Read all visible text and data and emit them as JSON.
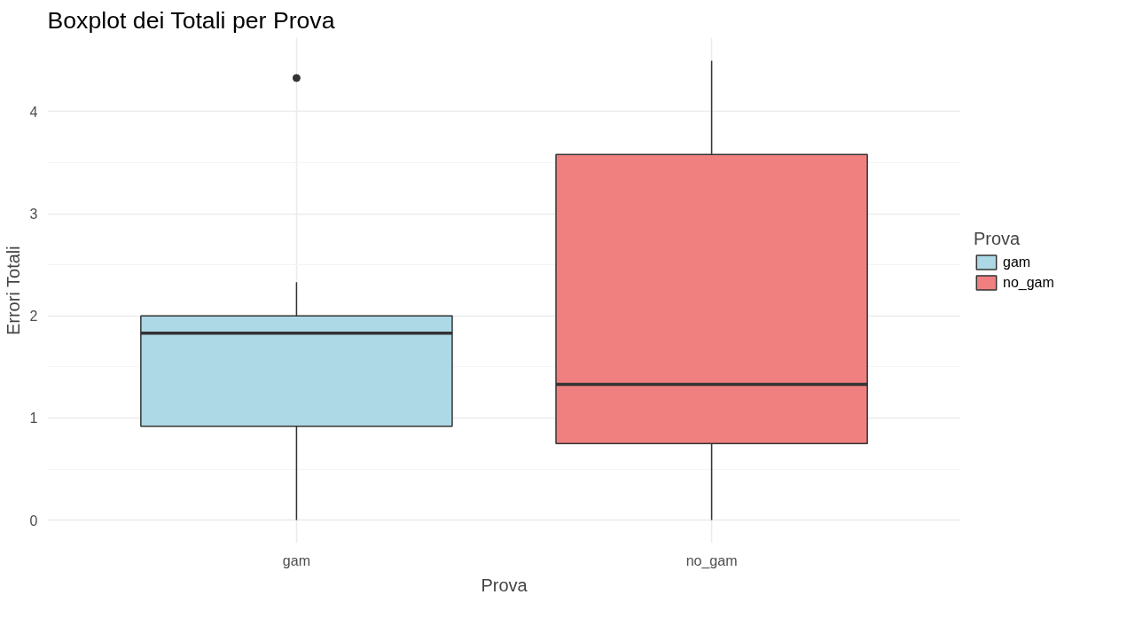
{
  "chart_data": {
    "type": "box",
    "title": "Boxplot dei Totali per Prova",
    "xlabel": "Prova",
    "ylabel": "Errori Totali",
    "legend_title": "Prova",
    "categories": [
      "gam",
      "no_gam"
    ],
    "series": [
      {
        "name": "gam",
        "color": "#add8e6",
        "boxes": [
          {
            "low": 0,
            "q1": 0.92,
            "median": 1.83,
            "q3": 2.0,
            "high": 2.33,
            "outliers": [
              4.33
            ]
          },
          null
        ]
      },
      {
        "name": "no_gam",
        "color": "#f08080",
        "boxes": [
          null,
          {
            "low": 0,
            "q1": 0.75,
            "median": 1.33,
            "q3": 3.58,
            "high": 4.5
          }
        ]
      }
    ],
    "ylim": [
      -0.225,
      4.725
    ],
    "yticks": [
      0,
      1,
      2,
      3,
      4
    ],
    "grid": true,
    "legend": "right"
  }
}
